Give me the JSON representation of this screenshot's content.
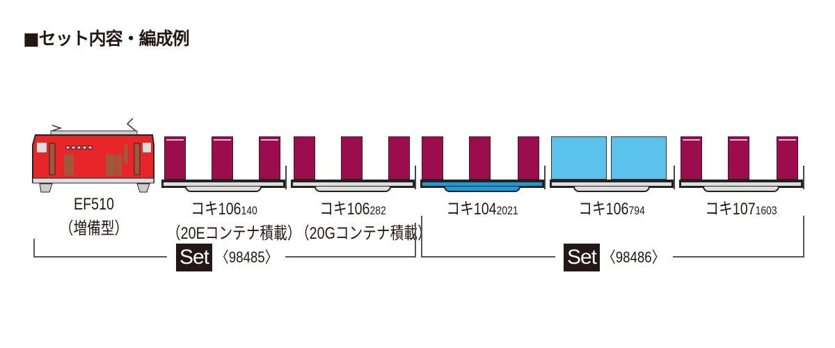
{
  "title": "■セット内容・編成例",
  "colors": {
    "locomotive": "#e8262a",
    "container_maroon": "#9c0d4e",
    "container_blue": "#5bc2ee",
    "frame_blue": "#1e9ad6"
  },
  "cars": [
    {
      "name": "EF510",
      "sub": "",
      "note": "（増備型）",
      "type": "locomotive"
    },
    {
      "name": "コキ106",
      "sub": "140",
      "note": "（20Eコンテナ積載）",
      "type": "container-car"
    },
    {
      "name": "コキ106",
      "sub": "282",
      "note": "（20Gコンテナ積載）",
      "type": "container-car"
    },
    {
      "name": "コキ104",
      "sub": "2021",
      "note": "",
      "type": "container-car"
    },
    {
      "name": "コキ106",
      "sub": "794",
      "note": "",
      "type": "container-car"
    },
    {
      "name": "コキ107",
      "sub": "1603",
      "note": "",
      "type": "container-car"
    }
  ],
  "sets": [
    {
      "badge": "Set",
      "number": "〈98485〉"
    },
    {
      "badge": "Set",
      "number": "〈98486〉"
    }
  ]
}
